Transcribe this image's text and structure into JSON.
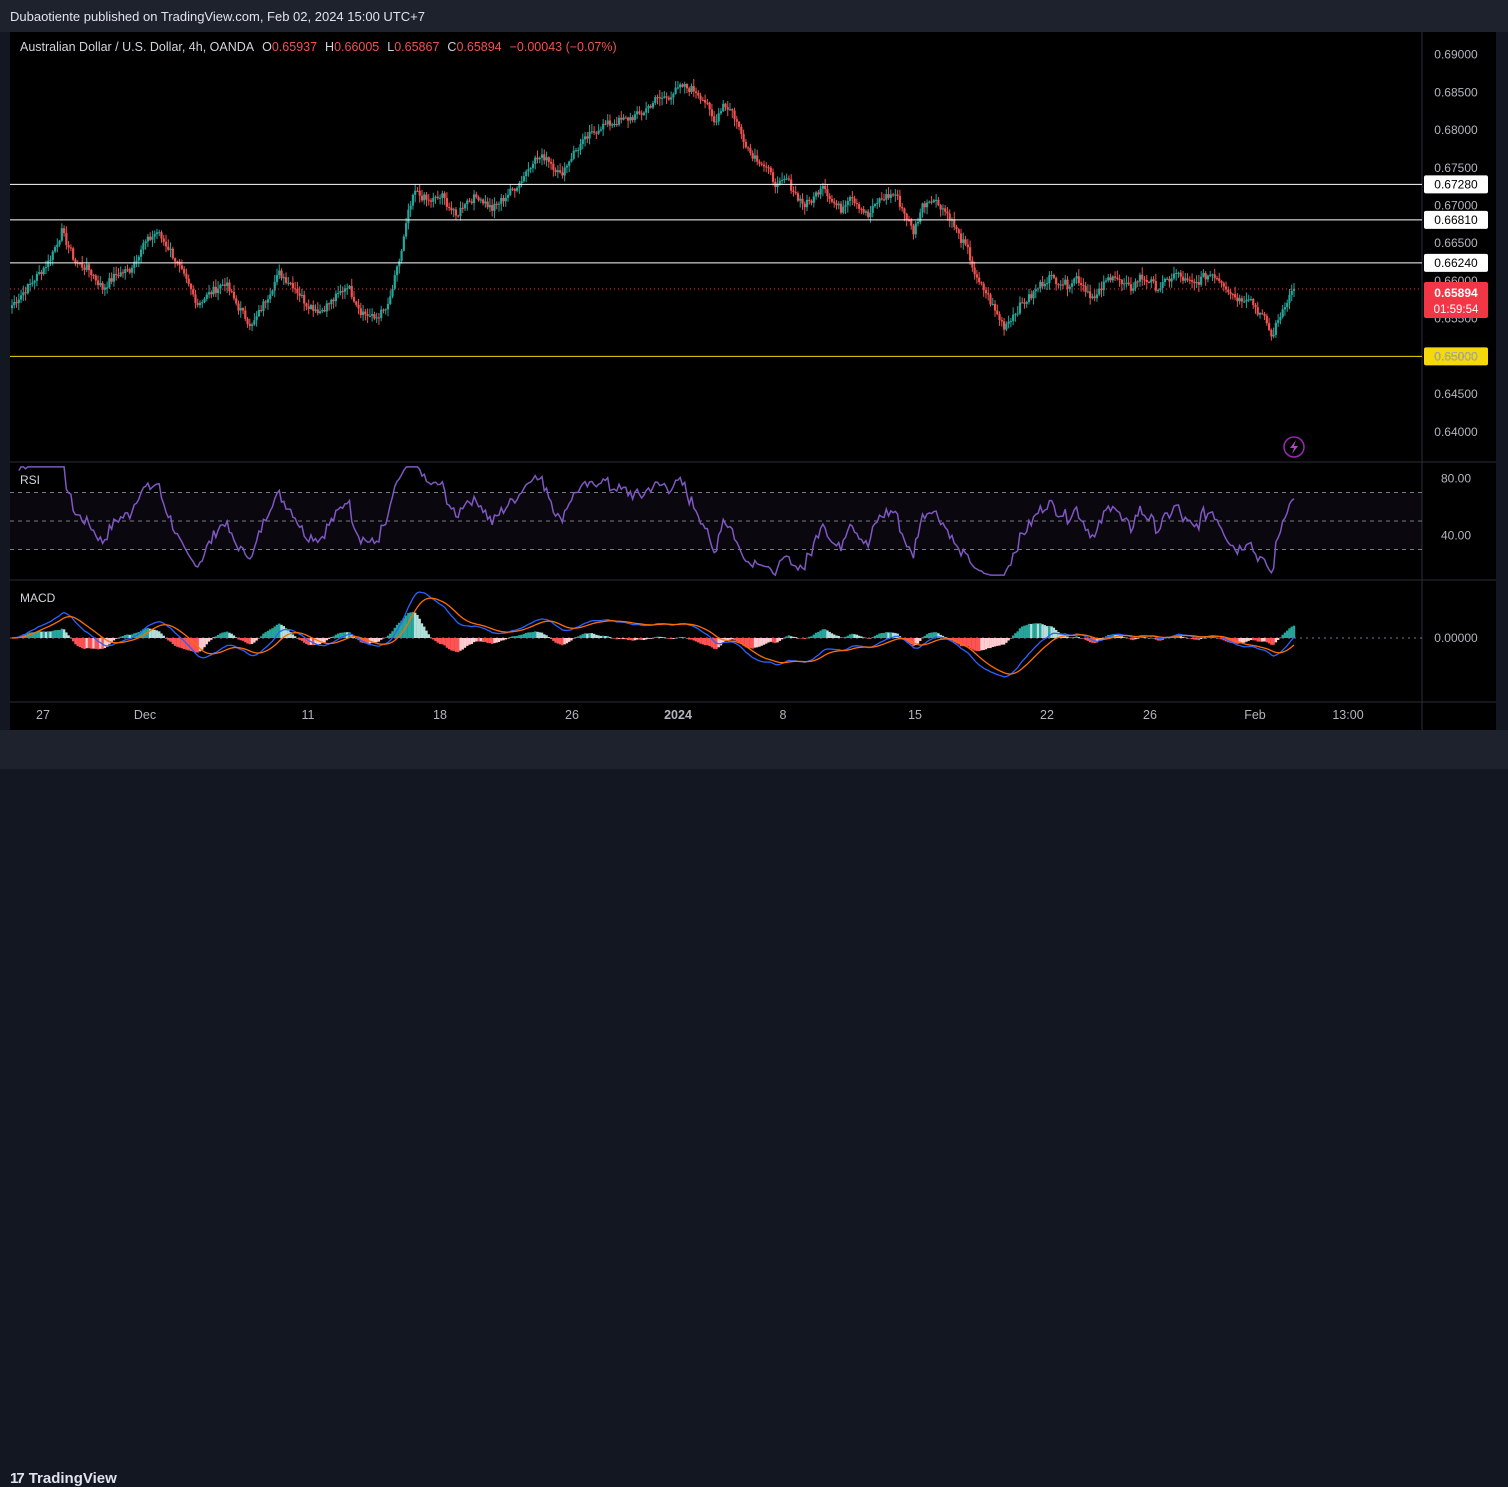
{
  "publisher": "Dubaotiente published on TradingView.com, Feb 02, 2024 15:00 UTC+7",
  "brand": "TradingView",
  "legend": {
    "symbol": "Australian Dollar / U.S. Dollar, 4h, OANDA",
    "o_label": "O",
    "o_value": "0.65937",
    "h_label": "H",
    "h_value": "0.66005",
    "l_label": "L",
    "l_value": "0.65867",
    "c_label": "C",
    "c_value": "0.65894",
    "change": "−0.00043 (−0.07%)"
  },
  "price_badge": {
    "price": "0.65894",
    "countdown": "01:59:54"
  },
  "colors": {
    "up": "#26a69a",
    "down": "#ef5350",
    "rsi": "#7e57c2",
    "macd": "#2962ff",
    "signal": "#ff6d00",
    "support_line": "#f5d90a"
  },
  "icons": {
    "alert": "lightning-icon",
    "logo": "tradingview-logo-icon"
  },
  "chart_data": [
    {
      "type": "candlestick",
      "title": "Australian Dollar / U.S. Dollar, 4h, OANDA",
      "y_ticks": [
        "0.69000",
        "0.68500",
        "0.68000",
        "0.67500",
        "0.67000",
        "0.66500",
        "0.66000",
        "0.65500",
        "0.65000",
        "0.64500",
        "0.64000"
      ],
      "x_ticks": [
        "27",
        "Dec",
        "11",
        "18",
        "26",
        "2024",
        "8",
        "15",
        "22",
        "26",
        "Feb",
        "13:00"
      ],
      "ylim": [
        0.6368,
        0.6922
      ],
      "horizontal_levels": [
        {
          "label": "0.67280",
          "value": 0.6728,
          "color": "white"
        },
        {
          "label": "0.66810",
          "value": 0.6681,
          "color": "white"
        },
        {
          "label": "0.66240",
          "value": 0.6624,
          "color": "white"
        },
        {
          "label": "0.65000",
          "value": 0.65,
          "color": "yellow"
        }
      ],
      "last_price": 0.65894,
      "anchors": [
        [
          0,
          0.6568
        ],
        [
          8,
          0.6595
        ],
        [
          16,
          0.6625
        ],
        [
          22,
          0.6665
        ],
        [
          28,
          0.6625
        ],
        [
          34,
          0.6615
        ],
        [
          40,
          0.659
        ],
        [
          46,
          0.6608
        ],
        [
          52,
          0.6615
        ],
        [
          58,
          0.6648
        ],
        [
          64,
          0.6665
        ],
        [
          70,
          0.664
        ],
        [
          76,
          0.6605
        ],
        [
          82,
          0.657
        ],
        [
          88,
          0.6585
        ],
        [
          94,
          0.6598
        ],
        [
          100,
          0.6565
        ],
        [
          106,
          0.654
        ],
        [
          112,
          0.6575
        ],
        [
          118,
          0.661
        ],
        [
          124,
          0.6595
        ],
        [
          130,
          0.657
        ],
        [
          136,
          0.656
        ],
        [
          142,
          0.6575
        ],
        [
          148,
          0.6595
        ],
        [
          154,
          0.656
        ],
        [
          160,
          0.655
        ],
        [
          166,
          0.6565
        ],
        [
          172,
          0.664
        ],
        [
          175,
          0.669
        ],
        [
          178,
          0.6718
        ],
        [
          184,
          0.6705
        ],
        [
          190,
          0.6712
        ],
        [
          196,
          0.6685
        ],
        [
          200,
          0.6705
        ],
        [
          206,
          0.6712
        ],
        [
          212,
          0.6695
        ],
        [
          218,
          0.6712
        ],
        [
          224,
          0.673
        ],
        [
          230,
          0.676
        ],
        [
          236,
          0.6765
        ],
        [
          242,
          0.674
        ],
        [
          248,
          0.677
        ],
        [
          254,
          0.679
        ],
        [
          260,
          0.6805
        ],
        [
          266,
          0.681
        ],
        [
          272,
          0.6815
        ],
        [
          278,
          0.6822
        ],
        [
          284,
          0.684
        ],
        [
          290,
          0.6845
        ],
        [
          296,
          0.6858
        ],
        [
          302,
          0.6852
        ],
        [
          306,
          0.6838
        ],
        [
          310,
          0.681
        ],
        [
          314,
          0.6835
        ],
        [
          318,
          0.6825
        ],
        [
          322,
          0.6795
        ],
        [
          326,
          0.677
        ],
        [
          330,
          0.676
        ],
        [
          334,
          0.6745
        ],
        [
          338,
          0.6725
        ],
        [
          342,
          0.6735
        ],
        [
          346,
          0.6715
        ],
        [
          350,
          0.67
        ],
        [
          354,
          0.671
        ],
        [
          358,
          0.673
        ],
        [
          362,
          0.6705
        ],
        [
          366,
          0.6695
        ],
        [
          370,
          0.6715
        ],
        [
          374,
          0.67
        ],
        [
          378,
          0.6685
        ],
        [
          382,
          0.6705
        ],
        [
          386,
          0.6712
        ],
        [
          390,
          0.6715
        ],
        [
          394,
          0.669
        ],
        [
          398,
          0.6665
        ],
        [
          402,
          0.67
        ],
        [
          406,
          0.671
        ],
        [
          410,
          0.67
        ],
        [
          414,
          0.6685
        ],
        [
          418,
          0.666
        ],
        [
          422,
          0.664
        ],
        [
          426,
          0.66
        ],
        [
          430,
          0.6585
        ],
        [
          434,
          0.656
        ],
        [
          438,
          0.654
        ],
        [
          442,
          0.6555
        ],
        [
          446,
          0.657
        ],
        [
          450,
          0.658
        ],
        [
          454,
          0.6595
        ],
        [
          458,
          0.6605
        ],
        [
          462,
          0.66
        ],
        [
          466,
          0.6595
        ],
        [
          470,
          0.6605
        ],
        [
          474,
          0.659
        ],
        [
          478,
          0.6575
        ],
        [
          482,
          0.6595
        ],
        [
          486,
          0.661
        ],
        [
          490,
          0.6595
        ],
        [
          494,
          0.659
        ],
        [
          498,
          0.6605
        ],
        [
          502,
          0.66
        ],
        [
          506,
          0.659
        ],
        [
          510,
          0.66
        ],
        [
          514,
          0.661
        ],
        [
          518,
          0.66
        ],
        [
          522,
          0.6595
        ],
        [
          526,
          0.6605
        ],
        [
          530,
          0.661
        ],
        [
          534,
          0.66
        ],
        [
          538,
          0.6585
        ],
        [
          542,
          0.6575
        ],
        [
          546,
          0.658
        ],
        [
          550,
          0.656
        ],
        [
          554,
          0.6545
        ],
        [
          556,
          0.6525
        ],
        [
          558,
          0.654
        ],
        [
          562,
          0.657
        ],
        [
          566,
          0.659
        ]
      ]
    },
    {
      "type": "line",
      "title": "RSI",
      "y_ticks": [
        "80.00",
        "40.00"
      ],
      "ylim": [
        10,
        90
      ],
      "bands": [
        70,
        50,
        30
      ]
    },
    {
      "type": "line",
      "title": "MACD",
      "y_ticks": [
        "0.00000"
      ]
    }
  ]
}
